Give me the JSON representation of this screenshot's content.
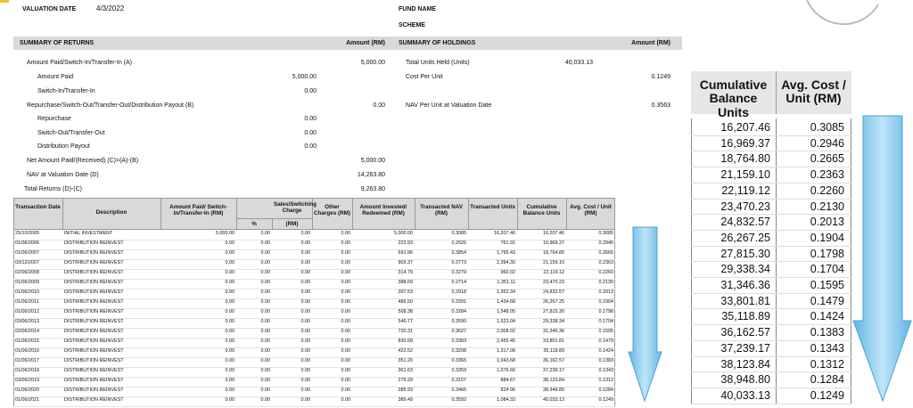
{
  "header": {
    "valuation_date_label": "VALUATION DATE",
    "valuation_date": "4/3/2022",
    "fund_name_label": "FUND NAME",
    "scheme_label": "SCHEME"
  },
  "summary_returns": {
    "title": "SUMMARY OF RETURNS",
    "amount_header": "Amount (RM)",
    "rows": [
      {
        "label": "Amount Paid/Switch-In/Transfer-In (A)",
        "amount": "5,000.00"
      },
      {
        "label": "Amount Paid",
        "sub_amount": "5,000.00"
      },
      {
        "label": "Switch-In/Transfer-In",
        "sub_amount": "0.00"
      },
      {
        "label": "Repurchase/Switch-Out/Transfer-Out/Distribution Payout (B)",
        "amount": "0.00"
      },
      {
        "label": "Repurchase",
        "sub_amount": "0.00"
      },
      {
        "label": "Switch-Out/Transfer-Out",
        "sub_amount": "0.00"
      },
      {
        "label": "Distribution Payout",
        "sub_amount": "0.00"
      },
      {
        "label": "Net Amount Paid/(Received) (C)=(A)-(B)",
        "amount": "5,000.00"
      },
      {
        "label": "NAV at Valuation Date (D)",
        "amount": "14,263.80"
      },
      {
        "label": "Total Returns (D)-(C)",
        "amount": "9,263.80"
      }
    ]
  },
  "summary_holdings": {
    "title": "SUMMARY OF HOLDINGS",
    "amount_header": "Amount (RM)",
    "rows": [
      {
        "label": "Total Units Held (Units)",
        "units": "40,033.13"
      },
      {
        "label": "Cost Per Unit",
        "amount": "0.1249"
      },
      {
        "label": "NAV Per Unit at Valuation Date",
        "amount": "0.3563"
      }
    ]
  },
  "table": {
    "columns": [
      "Transaction Date",
      "Description",
      "Amount Paid/ Switch-In/Transfer-In (RM)",
      "Sales/Switching Charge",
      "Other Charges (RM)",
      "Amount Invested/ Redeemed (RM)",
      "Transacted NAV (RM)",
      "Transacted Units",
      "Cumulative Balance Units",
      "Avg. Cost / Unit (RM)"
    ],
    "charge_subcolumns": [
      "%",
      "(RM)"
    ],
    "rows": [
      [
        "25/10/2005",
        "INITIAL INVESTMENT",
        "5,000.00",
        "0.00",
        "0.00",
        "0.00",
        "5,000.00",
        "0.3085",
        "16,207.46",
        "16,207.46",
        "0.3085"
      ],
      [
        "01/06/2006",
        "DISTRIBUTION REINVEST",
        "0.00",
        "0.00",
        "0.00",
        "0.00",
        "222.93",
        "0.2926",
        "761.91",
        "16,969.37",
        "0.2946"
      ],
      [
        "01/06/2007",
        "DISTRIBUTION REINVEST",
        "0.00",
        "0.00",
        "0.00",
        "0.00",
        "691.96",
        "0.3854",
        "1,795.43",
        "18,764.80",
        "0.2665"
      ],
      [
        "03/12/2007",
        "DISTRIBUTION REINVEST",
        "0.00",
        "0.00",
        "0.00",
        "0.00",
        "903.37",
        "0.3773",
        "2,394.30",
        "21,159.10",
        "0.2363"
      ],
      [
        "02/06/2008",
        "DISTRIBUTION REINVEST",
        "0.00",
        "0.00",
        "0.00",
        "0.00",
        "314.79",
        "0.3279",
        "960.02",
        "22,119.12",
        "0.2260"
      ],
      [
        "01/06/2009",
        "DISTRIBUTION REINVEST",
        "0.00",
        "0.00",
        "0.00",
        "0.00",
        "388.69",
        "0.2714",
        "1,351.11",
        "23,470.23",
        "0.2130"
      ],
      [
        "01/06/2010",
        "DISTRIBUTION REINVEST",
        "0.00",
        "0.00",
        "0.00",
        "0.00",
        "397.53",
        "0.2918",
        "1,362.34",
        "24,832.57",
        "0.2013"
      ],
      [
        "01/06/2011",
        "DISTRIBUTION REINVEST",
        "0.00",
        "0.00",
        "0.00",
        "0.00",
        "486.50",
        "0.3391",
        "1,434.68",
        "26,267.25",
        "0.1904"
      ],
      [
        "01/06/2012",
        "DISTRIBUTION REINVEST",
        "0.00",
        "0.00",
        "0.00",
        "0.00",
        "508.38",
        "0.3284",
        "1,548.05",
        "27,815.30",
        "0.1798"
      ],
      [
        "03/06/2013",
        "DISTRIBUTION REINVEST",
        "0.00",
        "0.00",
        "0.00",
        "0.00",
        "546.77",
        "0.3590",
        "1,523.04",
        "29,338.34",
        "0.1704"
      ],
      [
        "02/06/2014",
        "DISTRIBUTION REINVEST",
        "0.00",
        "0.00",
        "0.00",
        "0.00",
        "720.31",
        "0.3627",
        "2,008.02",
        "31,346.36",
        "0.1595"
      ],
      [
        "01/06/2015",
        "DISTRIBUTION REINVEST",
        "0.00",
        "0.00",
        "0.00",
        "0.00",
        "830.68",
        "0.3383",
        "2,455.45",
        "33,801.81",
        "0.1479"
      ],
      [
        "01/06/2016",
        "DISTRIBUTION REINVEST",
        "0.00",
        "0.00",
        "0.00",
        "0.00",
        "422.52",
        "0.3208",
        "1,317.08",
        "35,118.89",
        "0.1424"
      ],
      [
        "01/06/2017",
        "DISTRIBUTION REINVEST",
        "0.00",
        "0.00",
        "0.00",
        "0.00",
        "351.20",
        "0.3365",
        "1,043.68",
        "36,162.57",
        "0.1383"
      ],
      [
        "01/06/2018",
        "DISTRIBUTION REINVEST",
        "0.00",
        "0.00",
        "0.00",
        "0.00",
        "361.63",
        "0.3359",
        "1,076.60",
        "37,239.17",
        "0.1343"
      ],
      [
        "03/06/2019",
        "DISTRIBUTION REINVEST",
        "0.00",
        "0.00",
        "0.00",
        "0.00",
        "279.29",
        "0.3157",
        "884.67",
        "38,123.84",
        "0.1312"
      ],
      [
        "01/06/2020",
        "DISTRIBUTION REINVEST",
        "0.00",
        "0.00",
        "0.00",
        "0.00",
        "285.93",
        "0.3466",
        "824.96",
        "38,948.80",
        "0.1284"
      ],
      [
        "01/06/2021",
        "DISTRIBUTION REINVEST",
        "0.00",
        "0.00",
        "0.00",
        "0.00",
        "389.49",
        "0.3592",
        "1,084.33",
        "40,033.13",
        "0.1249"
      ]
    ]
  }
}
